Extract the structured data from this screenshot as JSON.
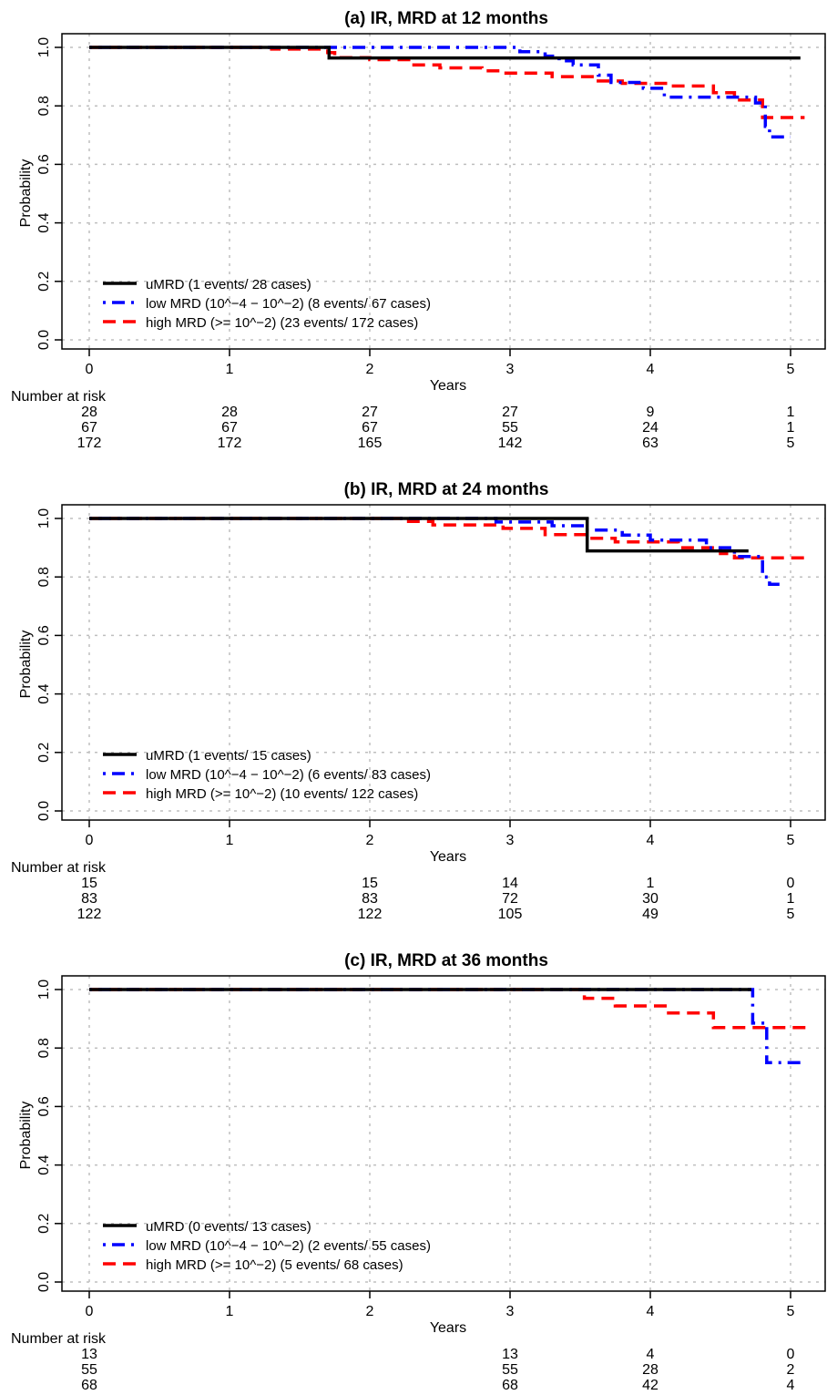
{
  "chart_data": [
    {
      "type": "line",
      "title": "(a) IR, MRD at 12 months",
      "xlabel": "Years",
      "ylabel": "Probability",
      "xlim": [
        0,
        5
      ],
      "ylim": [
        0,
        1
      ],
      "x_ticks": [
        "0",
        "1",
        "2",
        "3",
        "4",
        "5"
      ],
      "y_ticks": [
        "0.0",
        "0.2",
        "0.4",
        "0.6",
        "0.8",
        "1.0"
      ],
      "grid": true,
      "legend_position": "bottom-left",
      "series": [
        {
          "name": "uMRD (1 events/ 28 cases)",
          "color": "#000000",
          "style": "solid",
          "points": [
            [
              0,
              1.0
            ],
            [
              1.71,
              1.0
            ],
            [
              1.71,
              0.964
            ],
            [
              5.07,
              0.964
            ]
          ]
        },
        {
          "name": "low MRD (10^−4 − 10^−2) (8 events/ 67 cases)",
          "color": "#0000ff",
          "style": "dotdash",
          "points": [
            [
              0,
              1.0
            ],
            [
              3.07,
              1.0
            ],
            [
              3.07,
              0.985
            ],
            [
              3.25,
              0.985
            ],
            [
              3.25,
              0.97
            ],
            [
              3.35,
              0.97
            ],
            [
              3.35,
              0.954
            ],
            [
              3.45,
              0.954
            ],
            [
              3.45,
              0.94
            ],
            [
              3.63,
              0.94
            ],
            [
              3.63,
              0.905
            ],
            [
              3.72,
              0.905
            ],
            [
              3.72,
              0.88
            ],
            [
              3.95,
              0.88
            ],
            [
              3.95,
              0.86
            ],
            [
              4.1,
              0.86
            ],
            [
              4.1,
              0.83
            ],
            [
              4.75,
              0.83
            ],
            [
              4.75,
              0.81
            ],
            [
              4.82,
              0.81
            ],
            [
              4.82,
              0.73
            ],
            [
              4.85,
              0.73
            ],
            [
              4.85,
              0.694
            ],
            [
              5.0,
              0.694
            ]
          ]
        },
        {
          "name": "high MRD (>= 10^−2) (23 events/ 172 cases)",
          "color": "#ff0000",
          "style": "dashed",
          "points": [
            [
              0,
              1.0
            ],
            [
              1.3,
              1.0
            ],
            [
              1.3,
              0.994
            ],
            [
              1.7,
              0.994
            ],
            [
              1.7,
              0.982
            ],
            [
              1.75,
              0.982
            ],
            [
              1.75,
              0.965
            ],
            [
              2.0,
              0.965
            ],
            [
              2.0,
              0.958
            ],
            [
              2.3,
              0.958
            ],
            [
              2.3,
              0.94
            ],
            [
              2.5,
              0.94
            ],
            [
              2.5,
              0.93
            ],
            [
              2.8,
              0.93
            ],
            [
              2.8,
              0.92
            ],
            [
              2.95,
              0.92
            ],
            [
              2.95,
              0.912
            ],
            [
              3.3,
              0.912
            ],
            [
              3.3,
              0.9
            ],
            [
              3.6,
              0.9
            ],
            [
              3.6,
              0.885
            ],
            [
              3.8,
              0.885
            ],
            [
              3.8,
              0.877
            ],
            [
              4.15,
              0.877
            ],
            [
              4.15,
              0.868
            ],
            [
              4.45,
              0.868
            ],
            [
              4.45,
              0.845
            ],
            [
              4.6,
              0.845
            ],
            [
              4.6,
              0.82
            ],
            [
              4.8,
              0.82
            ],
            [
              4.8,
              0.76
            ],
            [
              5.1,
              0.76
            ]
          ]
        }
      ],
      "risk_table": {
        "header": "Number at risk",
        "rows": [
          [
            {
              "x": 0,
              "v": "28"
            },
            {
              "x": 1,
              "v": "28"
            },
            {
              "x": 2,
              "v": "27"
            },
            {
              "x": 3,
              "v": "27"
            },
            {
              "x": 4,
              "v": "9"
            },
            {
              "x": 5,
              "v": "1"
            }
          ],
          [
            {
              "x": 0,
              "v": "67"
            },
            {
              "x": 1,
              "v": "67"
            },
            {
              "x": 2,
              "v": "67"
            },
            {
              "x": 3,
              "v": "55"
            },
            {
              "x": 4,
              "v": "24"
            },
            {
              "x": 5,
              "v": "1"
            }
          ],
          [
            {
              "x": 0,
              "v": "172"
            },
            {
              "x": 1,
              "v": "172"
            },
            {
              "x": 2,
              "v": "165"
            },
            {
              "x": 3,
              "v": "142"
            },
            {
              "x": 4,
              "v": "63"
            },
            {
              "x": 5,
              "v": "5"
            }
          ]
        ]
      }
    },
    {
      "type": "line",
      "title": "(b) IR, MRD at 24 months",
      "xlabel": "Years",
      "ylabel": "Probability",
      "xlim": [
        0,
        5
      ],
      "ylim": [
        0,
        1
      ],
      "x_ticks": [
        "0",
        "1",
        "2",
        "3",
        "4",
        "5"
      ],
      "y_ticks": [
        "0.0",
        "0.2",
        "0.4",
        "0.6",
        "0.8",
        "1.0"
      ],
      "grid": true,
      "legend_position": "bottom-left",
      "series": [
        {
          "name": "uMRD (1 events/ 15 cases)",
          "color": "#000000",
          "style": "solid",
          "points": [
            [
              0,
              1.0
            ],
            [
              3.55,
              1.0
            ],
            [
              3.55,
              0.889
            ],
            [
              4.7,
              0.889
            ]
          ]
        },
        {
          "name": "low MRD (10^−4 − 10^−2) (6 events/ 83 cases)",
          "color": "#0000ff",
          "style": "dotdash",
          "points": [
            [
              0,
              1.0
            ],
            [
              2.9,
              1.0
            ],
            [
              2.9,
              0.988
            ],
            [
              3.3,
              0.988
            ],
            [
              3.3,
              0.975
            ],
            [
              3.55,
              0.975
            ],
            [
              3.55,
              0.96
            ],
            [
              3.8,
              0.96
            ],
            [
              3.8,
              0.943
            ],
            [
              4.0,
              0.943
            ],
            [
              4.0,
              0.926
            ],
            [
              4.4,
              0.926
            ],
            [
              4.4,
              0.9
            ],
            [
              4.6,
              0.9
            ],
            [
              4.6,
              0.87
            ],
            [
              4.8,
              0.87
            ],
            [
              4.8,
              0.8
            ],
            [
              4.85,
              0.8
            ],
            [
              4.85,
              0.775
            ],
            [
              4.95,
              0.775
            ]
          ]
        },
        {
          "name": "high MRD (>= 10^−2) (10 events/ 122 cases)",
          "color": "#ff0000",
          "style": "dashed",
          "points": [
            [
              0,
              1.0
            ],
            [
              2.25,
              1.0
            ],
            [
              2.25,
              0.99
            ],
            [
              2.45,
              0.99
            ],
            [
              2.45,
              0.978
            ],
            [
              2.95,
              0.978
            ],
            [
              2.95,
              0.966
            ],
            [
              3.25,
              0.966
            ],
            [
              3.25,
              0.945
            ],
            [
              3.55,
              0.945
            ],
            [
              3.55,
              0.932
            ],
            [
              3.75,
              0.932
            ],
            [
              3.75,
              0.92
            ],
            [
              4.2,
              0.92
            ],
            [
              4.2,
              0.9
            ],
            [
              4.5,
              0.9
            ],
            [
              4.5,
              0.88
            ],
            [
              4.6,
              0.88
            ],
            [
              4.6,
              0.865
            ],
            [
              5.13,
              0.865
            ]
          ]
        }
      ],
      "risk_table": {
        "header": "Number at risk",
        "rows": [
          [
            {
              "x": 0,
              "v": "15"
            },
            {
              "x": 2,
              "v": "15"
            },
            {
              "x": 3,
              "v": "14"
            },
            {
              "x": 4,
              "v": "1"
            },
            {
              "x": 5,
              "v": "0"
            }
          ],
          [
            {
              "x": 0,
              "v": "83"
            },
            {
              "x": 2,
              "v": "83"
            },
            {
              "x": 3,
              "v": "72"
            },
            {
              "x": 4,
              "v": "30"
            },
            {
              "x": 5,
              "v": "1"
            }
          ],
          [
            {
              "x": 0,
              "v": "122"
            },
            {
              "x": 2,
              "v": "122"
            },
            {
              "x": 3,
              "v": "105"
            },
            {
              "x": 4,
              "v": "49"
            },
            {
              "x": 5,
              "v": "5"
            }
          ]
        ]
      }
    },
    {
      "type": "line",
      "title": "(c) IR, MRD at 36 months",
      "xlabel": "Years",
      "ylabel": "Probability",
      "xlim": [
        0,
        5
      ],
      "ylim": [
        0,
        1
      ],
      "x_ticks": [
        "0",
        "1",
        "2",
        "3",
        "4",
        "5"
      ],
      "y_ticks": [
        "0.0",
        "0.2",
        "0.4",
        "0.6",
        "0.8",
        "1.0"
      ],
      "grid": true,
      "legend_position": "bottom-left",
      "series": [
        {
          "name": "uMRD (0 events/ 13 cases)",
          "color": "#000000",
          "style": "solid",
          "points": [
            [
              0,
              1.0
            ],
            [
              4.72,
              1.0
            ]
          ]
        },
        {
          "name": "low MRD (10^−4 − 10^−2) (2 events/ 55 cases)",
          "color": "#0000ff",
          "style": "dotdash",
          "points": [
            [
              0,
              1.0
            ],
            [
              4.73,
              1.0
            ],
            [
              4.73,
              0.885
            ],
            [
              4.83,
              0.885
            ],
            [
              4.83,
              0.75
            ],
            [
              5.08,
              0.75
            ]
          ]
        },
        {
          "name": "high MRD (>= 10^−2) (5 events/ 68 cases)",
          "color": "#ff0000",
          "style": "dashed",
          "points": [
            [
              0,
              1.0
            ],
            [
              3.53,
              1.0
            ],
            [
              3.53,
              0.97
            ],
            [
              3.75,
              0.97
            ],
            [
              3.75,
              0.944
            ],
            [
              4.13,
              0.944
            ],
            [
              4.13,
              0.92
            ],
            [
              4.45,
              0.92
            ],
            [
              4.45,
              0.87
            ],
            [
              5.13,
              0.87
            ]
          ]
        }
      ],
      "risk_table": {
        "header": "Number at risk",
        "rows": [
          [
            {
              "x": 0,
              "v": "13"
            },
            {
              "x": 3,
              "v": "13"
            },
            {
              "x": 4,
              "v": "4"
            },
            {
              "x": 5,
              "v": "0"
            }
          ],
          [
            {
              "x": 0,
              "v": "55"
            },
            {
              "x": 3,
              "v": "55"
            },
            {
              "x": 4,
              "v": "28"
            },
            {
              "x": 5,
              "v": "2"
            }
          ],
          [
            {
              "x": 0,
              "v": "68"
            },
            {
              "x": 3,
              "v": "68"
            },
            {
              "x": 4,
              "v": "42"
            },
            {
              "x": 5,
              "v": "4"
            }
          ]
        ]
      }
    }
  ]
}
